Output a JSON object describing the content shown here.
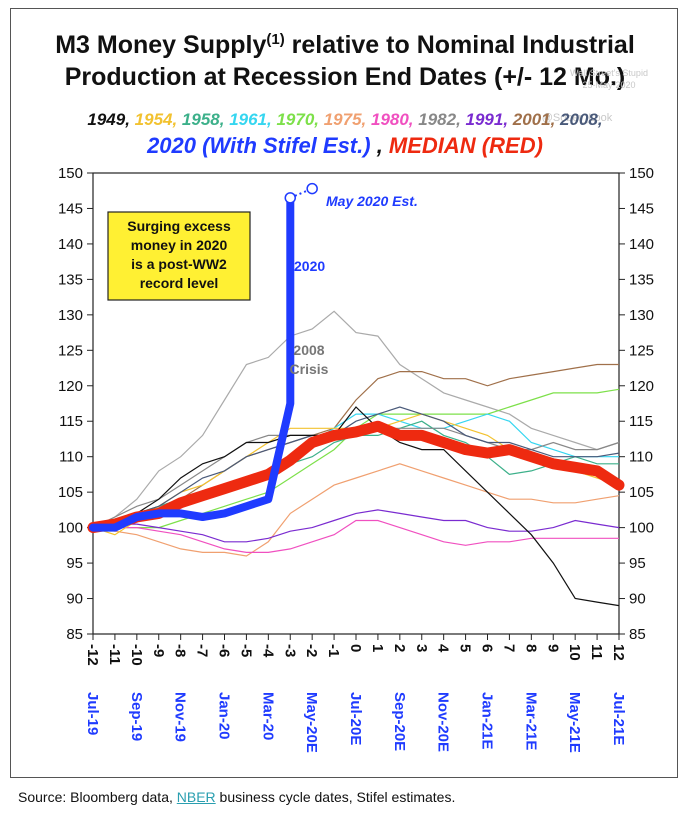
{
  "title_line1": "M3 Money Supply",
  "title_sup": "(1)",
  "title_line1_rest": " relative to Nominal Industrial",
  "title_line2": "Production at Recession End Dates (+/- 12 Mo.)",
  "watermark": [
    "Wall Street's Stupid",
    "25-May-2020",
    "@Sober_Look"
  ],
  "source": {
    "prefix": "Source: Bloomberg data, ",
    "link": "NBER",
    "suffix": " business cycle dates, Stifel estimates."
  },
  "chart_data": {
    "type": "line",
    "x": [
      -12,
      -11,
      -10,
      -9,
      -8,
      -7,
      -6,
      -5,
      -4,
      -3,
      -2,
      -1,
      0,
      1,
      2,
      3,
      4,
      5,
      6,
      7,
      8,
      9,
      10,
      11,
      12
    ],
    "x_tick_labels": [
      "-12",
      "-11",
      "-10",
      "-9",
      "-8",
      "-7",
      "-6",
      "-5",
      "-4",
      "-3",
      "-2",
      "-1",
      "0",
      "1",
      "2",
      "3",
      "4",
      "5",
      "6",
      "7",
      "8",
      "9",
      "10",
      "11",
      "12"
    ],
    "x_date_labels": [
      {
        "x": -12,
        "label": "Jul-19"
      },
      {
        "x": -10,
        "label": "Sep-19"
      },
      {
        "x": -8,
        "label": "Nov-19"
      },
      {
        "x": -6,
        "label": "Jan-20"
      },
      {
        "x": -4,
        "label": "Mar-20"
      },
      {
        "x": -2,
        "label": "May-20E"
      },
      {
        "x": 0,
        "label": "Jul-20E"
      },
      {
        "x": 2,
        "label": "Sep-20E"
      },
      {
        "x": 4,
        "label": "Nov-20E"
      },
      {
        "x": 6,
        "label": "Jan-21E"
      },
      {
        "x": 8,
        "label": "Mar-21E"
      },
      {
        "x": 10,
        "label": "May-21E"
      },
      {
        "x": 12,
        "label": "Jul-21E"
      }
    ],
    "ylim": [
      85,
      150
    ],
    "y_ticks": [
      85,
      90,
      95,
      100,
      105,
      110,
      115,
      120,
      125,
      130,
      135,
      140,
      145,
      150
    ],
    "grid": false,
    "legend_placement": "top",
    "legend_row1": [
      {
        "label": "1949",
        "color": "#111111"
      },
      {
        "label": "1954",
        "color": "#f2c230"
      },
      {
        "label": "1958",
        "color": "#3cb08a"
      },
      {
        "label": "1961",
        "color": "#35d6f0"
      },
      {
        "label": "1970",
        "color": "#7de04a"
      },
      {
        "label": "1975",
        "color": "#f0a070"
      },
      {
        "label": "1980",
        "color": "#f050c0"
      },
      {
        "label": "1982",
        "color": "#888888"
      },
      {
        "label": "1991",
        "color": "#7a2bd0"
      },
      {
        "label": "2001",
        "color": "#a0704a"
      },
      {
        "label": "2008",
        "color": "#4a5a7a"
      }
    ],
    "legend_row2": [
      {
        "label": "2020 (With Stifel Est.)",
        "color": "#1f3bff"
      },
      {
        "label": " , ",
        "color": "#111111"
      },
      {
        "label": "MEDIAN (RED)",
        "color": "#ee2a10"
      }
    ],
    "series": [
      {
        "name": "1949",
        "color": "#111111",
        "values": [
          100,
          101,
          102,
          104,
          107,
          109,
          110,
          112,
          112,
          113,
          113,
          113,
          117,
          114,
          112,
          111,
          111,
          108,
          105,
          102,
          99,
          95,
          90,
          89.5,
          89
        ]
      },
      {
        "name": "1954",
        "color": "#f2c230",
        "values": [
          100,
          99,
          101,
          103,
          105,
          106,
          108,
          110,
          112,
          114,
          114,
          114,
          114,
          114,
          115,
          116,
          115,
          114,
          113,
          111,
          110,
          109,
          108,
          107,
          106
        ]
      },
      {
        "name": "1958",
        "color": "#3cb08a",
        "values": [
          100,
          101,
          102,
          103,
          104,
          105,
          106,
          107,
          108,
          109,
          110,
          112,
          113,
          113,
          114,
          115,
          113,
          112,
          110,
          107.5,
          108,
          109,
          110,
          109,
          109
        ]
      },
      {
        "name": "1961",
        "color": "#35d6f0",
        "values": [
          100,
          100,
          101,
          102,
          103,
          104,
          105,
          106,
          108,
          110,
          112,
          114,
          116,
          116,
          115,
          114,
          114,
          115,
          116,
          115,
          112,
          111,
          110,
          110,
          110
        ]
      },
      {
        "name": "1970",
        "color": "#7de04a",
        "values": [
          100,
          100,
          100,
          100,
          101,
          102,
          103,
          104,
          105,
          107,
          109,
          111,
          114,
          116,
          116,
          116,
          116,
          116,
          116,
          117,
          118,
          119,
          119,
          119,
          119.5
        ]
      },
      {
        "name": "1975",
        "color": "#f0a070",
        "values": [
          100,
          99.5,
          99,
          98,
          97,
          96.5,
          96.5,
          96,
          98,
          102,
          104,
          106,
          107,
          108,
          109,
          108,
          107,
          106,
          105,
          104,
          104,
          103.5,
          103.5,
          104,
          104.5
        ]
      },
      {
        "name": "1980",
        "color": "#f050c0",
        "values": [
          100,
          100,
          100,
          99.5,
          99,
          98,
          97,
          96.5,
          96.5,
          97,
          98,
          99,
          101,
          101,
          100,
          99,
          98,
          97.5,
          98,
          98,
          98.5,
          98.5,
          98.5,
          98.5,
          98.5
        ]
      },
      {
        "name": "1982",
        "color": "#888888",
        "values": [
          100,
          101.5,
          103,
          104,
          106,
          108,
          110,
          112,
          113,
          113,
          113,
          113,
          113,
          114,
          114,
          114,
          114,
          113,
          112,
          111,
          111,
          112,
          111,
          111,
          112
        ]
      },
      {
        "name": "1991",
        "color": "#7a2bd0",
        "values": [
          100,
          100.5,
          100.5,
          100,
          99.5,
          99,
          98,
          98,
          98.5,
          99.5,
          100,
          101,
          102,
          102.5,
          102,
          101.5,
          101,
          101,
          100,
          99.5,
          99.5,
          100,
          101,
          100.5,
          100
        ]
      },
      {
        "name": "2001",
        "color": "#a0704a",
        "values": [
          100,
          101,
          102,
          103,
          104,
          106,
          108,
          110,
          111,
          112,
          113,
          114,
          118,
          121,
          122,
          122,
          121,
          121,
          120,
          121,
          121.5,
          122,
          122.5,
          123,
          123
        ]
      },
      {
        "name": "2008",
        "color": "#4a5a7a",
        "values": [
          100,
          101,
          102,
          103,
          105,
          107,
          108,
          110,
          111,
          112,
          113,
          113,
          115,
          116,
          117,
          116,
          115,
          113,
          112,
          112,
          111,
          110,
          110,
          110,
          110.5
        ]
      },
      {
        "name": "2008-outer",
        "color": "#aaaaaa",
        "values": [
          100,
          101.5,
          104,
          108,
          110,
          113,
          118,
          123,
          124,
          127,
          128,
          130.5,
          127.5,
          127,
          123,
          121,
          119,
          118,
          117,
          116,
          114,
          113,
          112,
          111,
          112
        ]
      },
      {
        "name": "2020",
        "color": "#1f3bff",
        "x": [
          -12,
          -11,
          -10,
          -9,
          -8,
          -7,
          -6,
          -5,
          -4,
          -3
        ],
        "values": [
          100,
          100,
          101.5,
          102,
          102,
          101.5,
          102,
          103,
          104,
          117.5
        ],
        "spike_to": 146.5
      },
      {
        "name": "2020 est",
        "color": "#1f3bff",
        "x": [
          -3,
          -2
        ],
        "values": [
          146.5,
          147.8
        ]
      },
      {
        "name": "MEDIAN",
        "color": "#ee2a10",
        "values": [
          100,
          100.5,
          101.5,
          102,
          103.5,
          104.5,
          105.5,
          106.5,
          107.5,
          109.5,
          112,
          113,
          113.5,
          114.3,
          113,
          113,
          112,
          111,
          110.5,
          111,
          110,
          109,
          108.5,
          108,
          106
        ]
      }
    ],
    "annotations": [
      {
        "text_lines": [
          "Surging excess",
          "money in 2020",
          "is a post-WW2",
          "record level"
        ],
        "kind": "callout-box",
        "fill": "#fff033"
      },
      {
        "text": "May 2020 Est.",
        "color": "#1f3bff"
      },
      {
        "text": "2020",
        "color": "#1f3bff"
      },
      {
        "text_lines": [
          "2008",
          "Crisis"
        ],
        "color": "#777777"
      }
    ]
  }
}
